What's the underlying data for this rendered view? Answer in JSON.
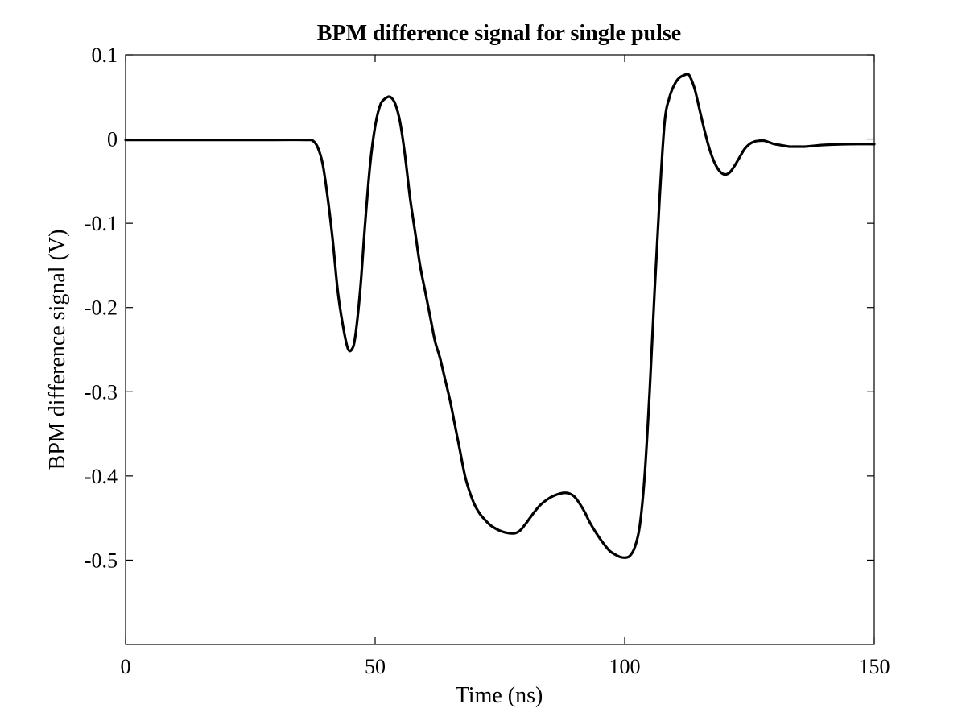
{
  "chart_data": {
    "type": "line",
    "title": "BPM difference signal for single pulse",
    "xlabel": "Time (ns)",
    "ylabel": "BPM difference signal (V)",
    "xlim": [
      0,
      150
    ],
    "ylim": [
      -0.6,
      0.1
    ],
    "xticks": [
      0,
      50,
      100,
      150
    ],
    "xtick_labels": [
      "0",
      "50",
      "100",
      "150"
    ],
    "yticks": [
      0.1,
      0,
      -0.1,
      -0.2,
      -0.3,
      -0.4,
      -0.5
    ],
    "ytick_labels": [
      "0.1",
      "0",
      "-0.1",
      "-0.2",
      "-0.3",
      "-0.4",
      "-0.5"
    ],
    "grid": false,
    "line_color": "#000000",
    "series": [
      {
        "x": [
          0,
          10,
          20,
          30,
          36,
          37.5,
          38.5,
          39.5,
          40.5,
          41.5,
          42.5,
          43.5,
          44.5,
          45.3,
          46,
          47,
          48,
          49,
          50,
          51,
          52,
          53,
          54,
          55,
          56,
          57,
          58,
          59,
          60,
          61,
          62,
          63,
          64,
          65,
          66,
          67,
          68,
          69,
          70,
          71,
          72,
          73,
          74,
          75,
          76,
          77,
          78,
          79,
          80,
          81,
          82,
          83,
          84,
          85,
          86,
          87,
          88,
          89,
          90,
          91,
          92,
          93,
          94,
          95,
          96,
          97,
          98,
          99,
          100,
          101,
          102,
          103,
          104,
          105,
          106,
          107,
          108,
          109,
          110,
          111,
          112,
          112.5,
          113,
          114,
          115,
          116,
          117,
          118,
          119,
          120,
          121,
          122,
          123,
          124,
          125,
          126,
          127,
          128,
          129,
          130,
          131,
          132,
          133,
          134,
          135,
          136,
          138,
          140,
          145,
          150
        ],
        "y": [
          -0.001,
          -0.001,
          -0.001,
          -0.001,
          -0.001,
          -0.002,
          -0.01,
          -0.03,
          -0.07,
          -0.12,
          -0.18,
          -0.22,
          -0.248,
          -0.25,
          -0.235,
          -0.18,
          -0.1,
          -0.03,
          0.015,
          0.04,
          0.048,
          0.05,
          0.042,
          0.02,
          -0.02,
          -0.07,
          -0.11,
          -0.15,
          -0.18,
          -0.21,
          -0.24,
          -0.26,
          -0.285,
          -0.31,
          -0.34,
          -0.37,
          -0.4,
          -0.42,
          -0.435,
          -0.445,
          -0.452,
          -0.458,
          -0.462,
          -0.465,
          -0.467,
          -0.468,
          -0.468,
          -0.465,
          -0.458,
          -0.45,
          -0.442,
          -0.435,
          -0.43,
          -0.426,
          -0.423,
          -0.421,
          -0.42,
          -0.421,
          -0.425,
          -0.433,
          -0.443,
          -0.455,
          -0.465,
          -0.474,
          -0.482,
          -0.489,
          -0.493,
          -0.496,
          -0.497,
          -0.495,
          -0.485,
          -0.46,
          -0.4,
          -0.3,
          -0.18,
          -0.07,
          0.02,
          0.05,
          0.065,
          0.073,
          0.076,
          0.077,
          0.075,
          0.06,
          0.035,
          0.01,
          -0.012,
          -0.028,
          -0.038,
          -0.042,
          -0.04,
          -0.032,
          -0.022,
          -0.012,
          -0.006,
          -0.003,
          -0.002,
          -0.002,
          -0.004,
          -0.006,
          -0.007,
          -0.008,
          -0.009,
          -0.009,
          -0.009,
          -0.009,
          -0.008,
          -0.007,
          -0.006,
          -0.006
        ]
      }
    ]
  }
}
